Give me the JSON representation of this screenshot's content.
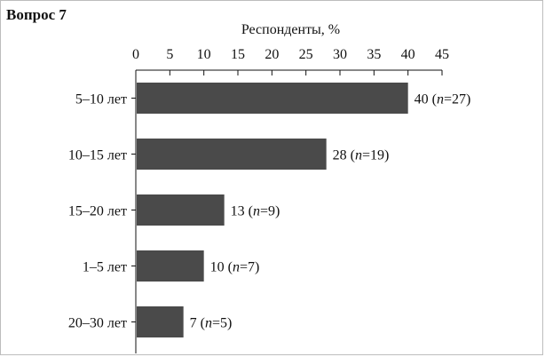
{
  "panel": {
    "title": "Вопрос 7"
  },
  "chart_data": {
    "type": "bar",
    "orientation": "horizontal",
    "title": "",
    "xlabel": "Респонденты, %",
    "ylabel": "",
    "xlim": [
      0,
      45
    ],
    "xticks": [
      0,
      5,
      10,
      15,
      20,
      25,
      30,
      35,
      40,
      45
    ],
    "x_axis_position": "top",
    "grid": false,
    "bar_color": "#4a4a4a",
    "categories": [
      "5–10 лет",
      "10–15 лет",
      "15–20 лет",
      "1–5 лет",
      "20–30 лет"
    ],
    "values": [
      40,
      28,
      13,
      10,
      7
    ],
    "n": [
      27,
      19,
      9,
      7,
      5
    ],
    "data_labels": [
      {
        "value": "40",
        "pre": " (",
        "n_symbol": "n",
        "post": "=27)"
      },
      {
        "value": "28",
        "pre": " (",
        "n_symbol": "n",
        "post": "=19)"
      },
      {
        "value": "13",
        "pre": " (",
        "n_symbol": "n",
        "post": "=9)"
      },
      {
        "value": "10",
        "pre": " (",
        "n_symbol": "n",
        "post": "=7)"
      },
      {
        "value": "7",
        "pre": " (",
        "n_symbol": "n",
        "post": "=5)"
      }
    ]
  }
}
